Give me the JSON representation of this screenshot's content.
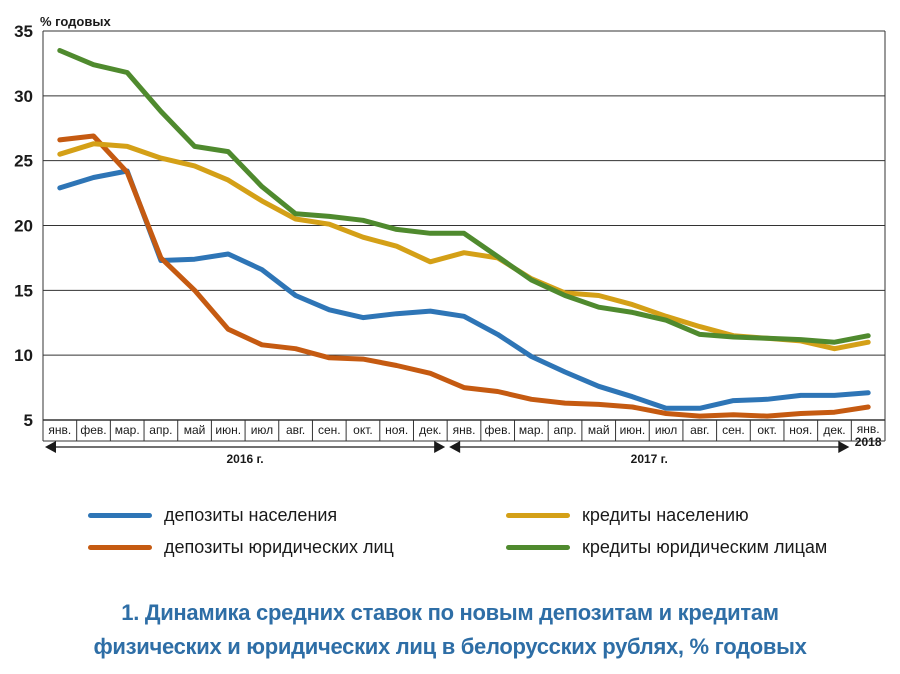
{
  "chart_data": {
    "type": "line",
    "unit_label": "% годовых",
    "ylim": [
      5,
      35
    ],
    "yticks": [
      5,
      10,
      15,
      20,
      25,
      30,
      35
    ],
    "grid": true,
    "categories": [
      "янв.",
      "фев.",
      "мар.",
      "апр.",
      "май",
      "июн.",
      "июл",
      "авг.",
      "сен.",
      "окт.",
      "ноя.",
      "дек.",
      "янв.",
      "фев.",
      "мар.",
      "апр.",
      "май",
      "июн.",
      "июл",
      "авг.",
      "сен.",
      "окт.",
      "ноя.",
      "дек.",
      "янв."
    ],
    "year_groups": [
      {
        "label": "2016 г.",
        "from": 0,
        "to": 11
      },
      {
        "label": "2017 г.",
        "from": 12,
        "to": 23
      },
      {
        "label": "2018",
        "from": 24,
        "to": 24
      }
    ],
    "series": [
      {
        "name": "депозиты населения",
        "color": "#2e75b6",
        "values": [
          22.9,
          23.7,
          24.2,
          17.3,
          17.4,
          17.8,
          16.6,
          14.6,
          13.5,
          12.9,
          13.2,
          13.4,
          13.0,
          11.6,
          9.9,
          8.7,
          7.6,
          6.8,
          5.9,
          5.9,
          6.5,
          6.6,
          6.9,
          6.9,
          7.1
        ]
      },
      {
        "name": "депозиты юридических лиц",
        "color": "#c55a11",
        "values": [
          26.6,
          26.9,
          24.1,
          17.5,
          15.0,
          12.0,
          10.8,
          10.5,
          9.8,
          9.7,
          9.2,
          8.6,
          7.5,
          7.2,
          6.6,
          6.3,
          6.2,
          6.0,
          5.5,
          5.3,
          5.4,
          5.3,
          5.5,
          5.6,
          6.0
        ]
      },
      {
        "name": "кредиты населению",
        "color": "#d4a017",
        "values": [
          25.5,
          26.3,
          26.1,
          25.2,
          24.6,
          23.5,
          21.9,
          20.5,
          20.1,
          19.1,
          18.4,
          17.2,
          17.9,
          17.5,
          15.9,
          14.8,
          14.6,
          13.9,
          13.0,
          12.2,
          11.5,
          11.3,
          11.1,
          10.5,
          11.0
        ]
      },
      {
        "name": "кредиты юридическим лицам",
        "color": "#4f8a2e",
        "values": [
          33.5,
          32.4,
          31.8,
          28.8,
          26.1,
          25.7,
          23.0,
          20.9,
          20.7,
          20.4,
          19.7,
          19.4,
          19.4,
          17.6,
          15.8,
          14.6,
          13.7,
          13.3,
          12.7,
          11.6,
          11.4,
          11.3,
          11.2,
          11.0,
          11.5
        ]
      }
    ]
  },
  "legend": [
    {
      "label": "депозиты населения",
      "color": "#2e75b6"
    },
    {
      "label": "кредиты населению",
      "color": "#d4a017"
    },
    {
      "label": "депозиты юридических лиц",
      "color": "#c55a11"
    },
    {
      "label": "кредиты юридическим лицам",
      "color": "#4f8a2e"
    }
  ],
  "caption": {
    "line1": "1. Динамика средних ставок по новым депозитам и кредитам",
    "line2": "физических и юридических лиц в белорусских рублях, % годовых"
  }
}
